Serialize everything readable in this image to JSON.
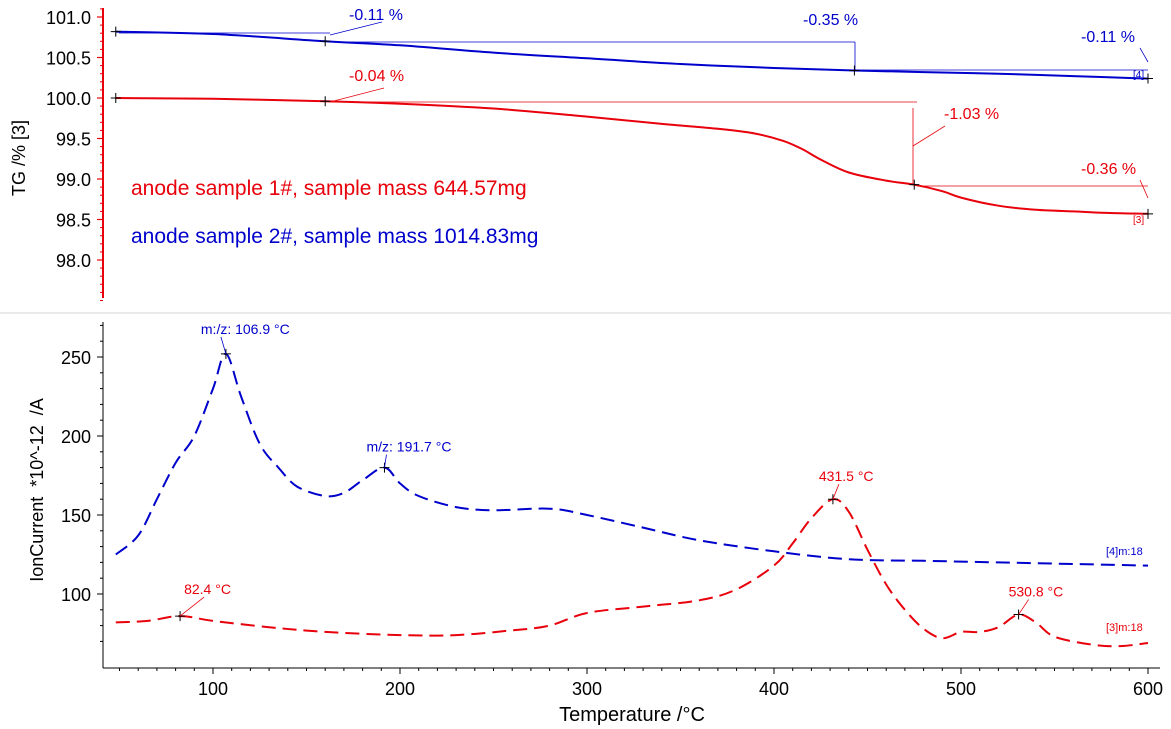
{
  "colors": {
    "red": "#e8000b",
    "blue": "#0000cc",
    "axis": "#000000",
    "separator": "#e3e3e3"
  },
  "chart_data": [
    {
      "type": "line",
      "panel": "tg",
      "ylabel": "TG /% [3]",
      "ylim": [
        97.5,
        101.2
      ],
      "xlim": [
        45,
        601
      ],
      "yticks": [
        "98.0",
        "98.5",
        "99.0",
        "99.5",
        "100.0",
        "100.5",
        "101.0"
      ],
      "ytick_values": [
        98.0,
        98.5,
        99.0,
        99.5,
        100.0,
        100.5,
        101.0
      ],
      "grid": false,
      "legend": "upper-left",
      "legend_labels": [
        "anode sample 1#, sample mass 644.57mg",
        "anode sample 2#, sample mass 1014.83mg"
      ],
      "series": [
        {
          "name": "anode sample 1#, sample mass 644.57mg",
          "color": "#e8000b",
          "tag": "[3]",
          "x": [
            48,
            100,
            160,
            200,
            250,
            300,
            340,
            370,
            390,
            405,
            415,
            425,
            440,
            460,
            475,
            490,
            500,
            520,
            540,
            560,
            580,
            600
          ],
          "y": [
            100.0,
            99.99,
            99.96,
            99.93,
            99.87,
            99.77,
            99.68,
            99.62,
            99.56,
            99.47,
            99.37,
            99.24,
            99.08,
            98.98,
            98.93,
            98.85,
            98.77,
            98.67,
            98.62,
            98.6,
            98.58,
            98.57
          ]
        },
        {
          "name": "anode sample 2#, sample mass 1014.83mg",
          "color": "#0000cc",
          "tag": "[4]",
          "x": [
            48,
            100,
            160,
            200,
            250,
            300,
            350,
            400,
            443,
            480,
            520,
            560,
            600
          ],
          "y": [
            100.82,
            100.79,
            100.7,
            100.65,
            100.56,
            100.49,
            100.42,
            100.37,
            100.34,
            100.32,
            100.3,
            100.27,
            100.24
          ]
        }
      ],
      "annotations": [
        {
          "text": "-0.11 %",
          "color": "#0000cc"
        },
        {
          "text": "-0.35 %",
          "color": "#0000cc"
        },
        {
          "text": "-0.11 %",
          "color": "#0000cc"
        },
        {
          "text": "-0.04 %",
          "color": "#e8000b"
        },
        {
          "text": "-1.03 %",
          "color": "#e8000b"
        },
        {
          "text": "-0.36 %",
          "color": "#e8000b"
        }
      ],
      "markers": [
        {
          "series": 1,
          "x": 48,
          "y": 100.82
        },
        {
          "series": 1,
          "x": 160,
          "y": 100.7
        },
        {
          "series": 1,
          "x": 443,
          "y": 100.34
        },
        {
          "series": 1,
          "x": 600,
          "y": 100.24
        },
        {
          "series": 0,
          "x": 48,
          "y": 100.0
        },
        {
          "series": 0,
          "x": 160,
          "y": 99.96
        },
        {
          "series": 0,
          "x": 475,
          "y": 98.93
        },
        {
          "series": 0,
          "x": 600,
          "y": 98.57
        }
      ]
    },
    {
      "type": "line",
      "panel": "ion-current",
      "ylabel": "IonCurrent  *10^-12  /A",
      "xlabel": "Temperature /°C",
      "xlim": [
        45,
        601
      ],
      "ylim": [
        66,
        272
      ],
      "xticks": [
        "100",
        "200",
        "300",
        "400",
        "500",
        "600"
      ],
      "xtick_values": [
        100,
        200,
        300,
        400,
        500,
        600
      ],
      "yticks": [
        "100",
        "150",
        "200",
        "250"
      ],
      "ytick_values": [
        100,
        150,
        200,
        250
      ],
      "grid": false,
      "series": [
        {
          "color": "#0000cc",
          "tag": "[4]m:18",
          "dash": true,
          "x": [
            48,
            60,
            70,
            80,
            90,
            100,
            106.9,
            115,
            125,
            135,
            145,
            160,
            170,
            180,
            191.7,
            200,
            210,
            230,
            250,
            280,
            300,
            330,
            360,
            400,
            440,
            480,
            520,
            560,
            600
          ],
          "y": [
            125,
            137,
            160,
            183,
            200,
            230,
            252,
            225,
            195,
            180,
            168,
            162,
            164,
            172,
            180,
            170,
            162,
            155,
            153,
            154,
            150,
            142,
            134,
            127,
            122,
            121,
            120,
            119,
            118
          ]
        },
        {
          "color": "#e8000b",
          "tag": "[3]m:18",
          "dash": true,
          "x": [
            48,
            65,
            82.4,
            100,
            130,
            160,
            200,
            230,
            260,
            280,
            300,
            330,
            360,
            380,
            400,
            410,
            420,
            431.5,
            440,
            450,
            460,
            470,
            480,
            490,
            500,
            510,
            520,
            530.8,
            540,
            550,
            570,
            585,
            600
          ],
          "y": [
            82,
            83,
            86,
            83,
            79,
            76,
            74,
            74,
            77,
            80,
            88,
            92,
            96,
            103,
            118,
            132,
            148,
            160,
            152,
            128,
            106,
            90,
            78,
            72,
            76,
            76,
            79,
            87,
            82,
            73,
            68,
            67,
            69
          ]
        }
      ],
      "peak_labels": [
        {
          "text": "m:/z: 106.9 °C",
          "color": "#0000cc",
          "x": 106.9,
          "y": 252
        },
        {
          "text": "m/z: 191.7 °C",
          "color": "#0000cc",
          "x": 191.7,
          "y": 180
        },
        {
          "text": "431.5 °C",
          "color": "#e8000b",
          "x": 431.5,
          "y": 160
        },
        {
          "text": "82.4 °C",
          "color": "#e8000b",
          "x": 82.4,
          "y": 86
        },
        {
          "text": "530.8 °C",
          "color": "#e8000b",
          "x": 530.8,
          "y": 87
        }
      ]
    }
  ]
}
